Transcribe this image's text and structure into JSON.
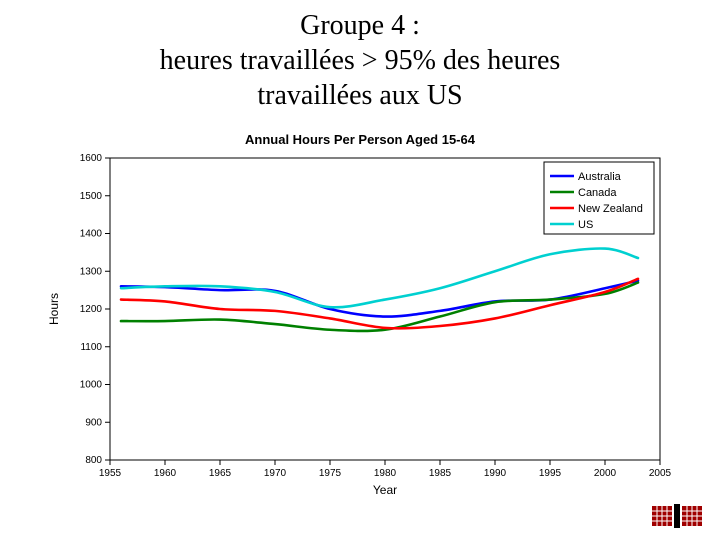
{
  "slide_title_line1": "Groupe 4 :",
  "slide_title_line2": "heures travaillées > 95% des heures",
  "slide_title_line3": "travaillées aux US",
  "chart": {
    "type": "line",
    "title": "Annual Hours Per Person Aged 15-64",
    "title_fontsize": 13,
    "title_color": "#000000",
    "xlabel": "Year",
    "ylabel": "Hours",
    "label_fontsize": 12,
    "background_color": "#ffffff",
    "axis_color": "#000000",
    "xlim": [
      1955,
      2005
    ],
    "ylim": [
      800,
      1600
    ],
    "xticks": [
      1955,
      1960,
      1965,
      1970,
      1975,
      1980,
      1985,
      1990,
      1995,
      2000,
      2005
    ],
    "yticks": [
      800,
      900,
      1000,
      1100,
      1200,
      1300,
      1400,
      1500,
      1600
    ],
    "tick_fontsize": 10,
    "line_width": 2.6,
    "legend": {
      "position": "top-right",
      "fontsize": 11,
      "border_color": "#000000",
      "bg_color": "#ffffff"
    },
    "series": [
      {
        "name": "Australia",
        "color": "#0000ff",
        "x": [
          1956,
          1960,
          1965,
          1970,
          1975,
          1980,
          1985,
          1990,
          1995,
          2000,
          2003
        ],
        "y": [
          1260,
          1258,
          1250,
          1248,
          1200,
          1180,
          1195,
          1220,
          1225,
          1255,
          1275
        ]
      },
      {
        "name": "Canada",
        "color": "#008000",
        "x": [
          1956,
          1960,
          1965,
          1970,
          1975,
          1980,
          1985,
          1990,
          1995,
          2000,
          2003
        ],
        "y": [
          1168,
          1168,
          1172,
          1160,
          1145,
          1145,
          1180,
          1218,
          1225,
          1240,
          1270
        ]
      },
      {
        "name": "New Zealand",
        "color": "#ff0000",
        "x": [
          1956,
          1960,
          1965,
          1970,
          1975,
          1980,
          1985,
          1990,
          1995,
          2000,
          2003
        ],
        "y": [
          1225,
          1220,
          1200,
          1195,
          1175,
          1150,
          1155,
          1175,
          1210,
          1245,
          1280
        ]
      },
      {
        "name": "US",
        "color": "#00d0d0",
        "x": [
          1956,
          1960,
          1965,
          1970,
          1975,
          1980,
          1985,
          1990,
          1995,
          2000,
          2003
        ],
        "y": [
          1255,
          1260,
          1260,
          1245,
          1205,
          1225,
          1255,
          1300,
          1345,
          1360,
          1335
        ]
      }
    ]
  },
  "logo": {
    "type": "grid-icon-pair",
    "square_color": "#a00000",
    "grid_color": "#ffffff",
    "bar_color": "#000000"
  }
}
